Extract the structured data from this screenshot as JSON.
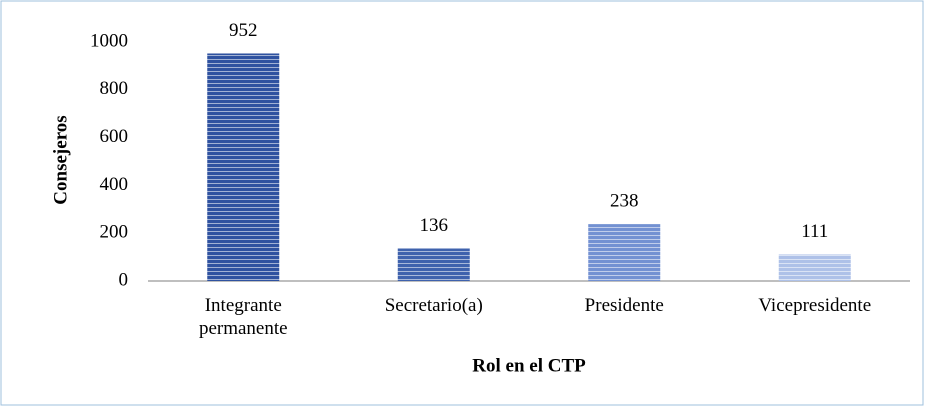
{
  "chart_data": {
    "type": "bar",
    "categories": [
      "Integrante permanente",
      "Secretario(a)",
      "Presidente",
      "Vicepresidente"
    ],
    "values": [
      952,
      136,
      238,
      111
    ],
    "colors": [
      "#2f52a0",
      "#3f62ad",
      "#7391d2",
      "#aec1e8"
    ],
    "xlabel": "Rol en el CTP",
    "ylabel": "Consejeros",
    "ylim": [
      0,
      1000
    ],
    "yticks": [
      0,
      200,
      400,
      600,
      800,
      1000
    ],
    "grid": false
  }
}
